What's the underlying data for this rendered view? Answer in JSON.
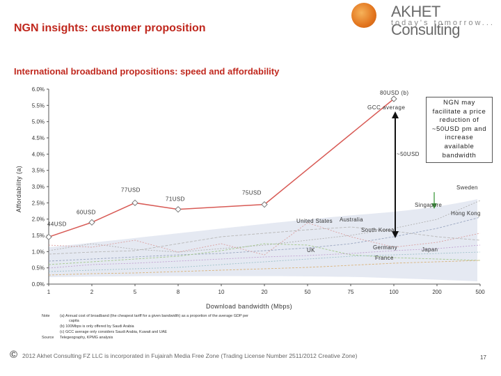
{
  "header": {
    "title": "NGN insights: customer proposition",
    "subtitle": "International broadband propositions: speed and affordability",
    "brand_name": "AKHET Consulting",
    "brand_tagline": "today's tomorrow..."
  },
  "note_box": {
    "lines": [
      "NGN may",
      "facilitate a price",
      "reduction of",
      "~50USD pm and",
      "increase",
      "available",
      "bandwidth"
    ]
  },
  "chart_data": {
    "type": "line",
    "title": "International broadband propositions: speed and affordability",
    "xlabel": "Download bandwidth (Mbps)",
    "ylabel": "Affordability (a)",
    "x_categories": [
      "1",
      "2",
      "5",
      "8",
      "10",
      "20",
      "50",
      "75",
      "100",
      "200",
      "500"
    ],
    "y_ticks": [
      "0.0%",
      "0.5%",
      "1.0%",
      "1.5%",
      "2.0%",
      "2.5%",
      "3.0%",
      "3.5%",
      "4.0%",
      "4.5%",
      "5.0%",
      "5.5%",
      "6.0%"
    ],
    "ylim": [
      0,
      6
    ],
    "gcc_series": {
      "name": "GCC average",
      "values": [
        1.45,
        1.9,
        2.5,
        2.3,
        null,
        2.45,
        null,
        null,
        5.7,
        null,
        null
      ],
      "point_labels": [
        "44USD",
        "60USD",
        "77USD",
        "71USD",
        null,
        "75USD",
        null,
        null,
        "80USD (b)",
        null,
        null
      ]
    },
    "arrow_label": "~50USD",
    "country_labels": [
      "Sweden",
      "Singapore",
      "Hong Kong",
      "United States",
      "Australia",
      "South Korea",
      "UK",
      "Germany",
      "France",
      "Japan"
    ],
    "series_label": "GCC average"
  },
  "notes": {
    "note_label": "Note",
    "source_label": "Source",
    "items": [
      "(a)    Annual cost of broadband (the cheapest tariff for a given bandwidth) as a proportion of the average GDP per",
      "capita",
      "(b)    100Mbps is only offered by Saudi Arabia",
      "(c)    GCC average only considers Saudi Arabia, Kuwait and UAE"
    ],
    "source_text": "Telegeography, KPMG analysis"
  },
  "footer": {
    "copyright_symbol": "©",
    "copyright": "2012 Akhet Consulting FZ LLC is incorporated in Fujairah Media Free Zone (Trading License Number 2511/2012 Creative Zone)",
    "page_number": "17"
  },
  "colors": {
    "accent_red": "#c0281e",
    "gcc_line": "#d85a55",
    "arrow": "#111111",
    "sweden_arrow": "#3e9b3e",
    "band": "#e3e8f2"
  }
}
